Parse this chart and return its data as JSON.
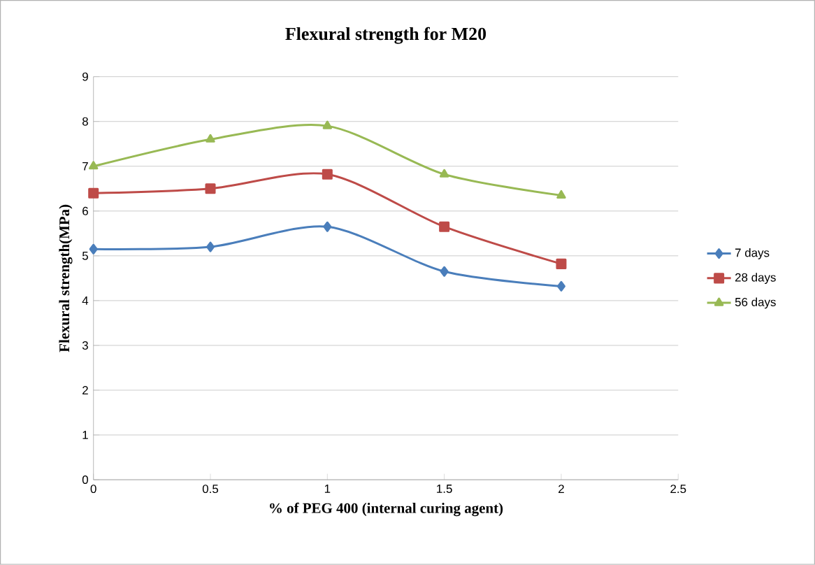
{
  "chart_data": {
    "type": "line",
    "title": "Flexural strength for M20",
    "xlabel": "%  of PEG 400 (internal curing agent)",
    "ylabel": "Flexural strength(MPa)",
    "x": [
      0,
      0.5,
      1,
      1.5,
      2
    ],
    "series": [
      {
        "name": "7 days",
        "color": "#4a7ebb",
        "marker": "diamond",
        "values": [
          5.15,
          5.2,
          5.65,
          4.65,
          4.32
        ]
      },
      {
        "name": "28 days",
        "color": "#be4b48",
        "marker": "square",
        "values": [
          6.4,
          6.5,
          6.82,
          5.65,
          4.82
        ]
      },
      {
        "name": "56 days",
        "color": "#98b954",
        "marker": "triangle",
        "values": [
          7.0,
          7.6,
          7.9,
          6.82,
          6.35
        ]
      }
    ],
    "xlim": [
      0,
      2.5
    ],
    "xticks": [
      0,
      0.5,
      1,
      1.5,
      2,
      2.5
    ],
    "ylim": [
      0,
      9
    ],
    "yticks": [
      0,
      1,
      2,
      3,
      4,
      5,
      6,
      7,
      8,
      9
    ],
    "grid": "y",
    "legend": "right",
    "line_style": "solid"
  }
}
